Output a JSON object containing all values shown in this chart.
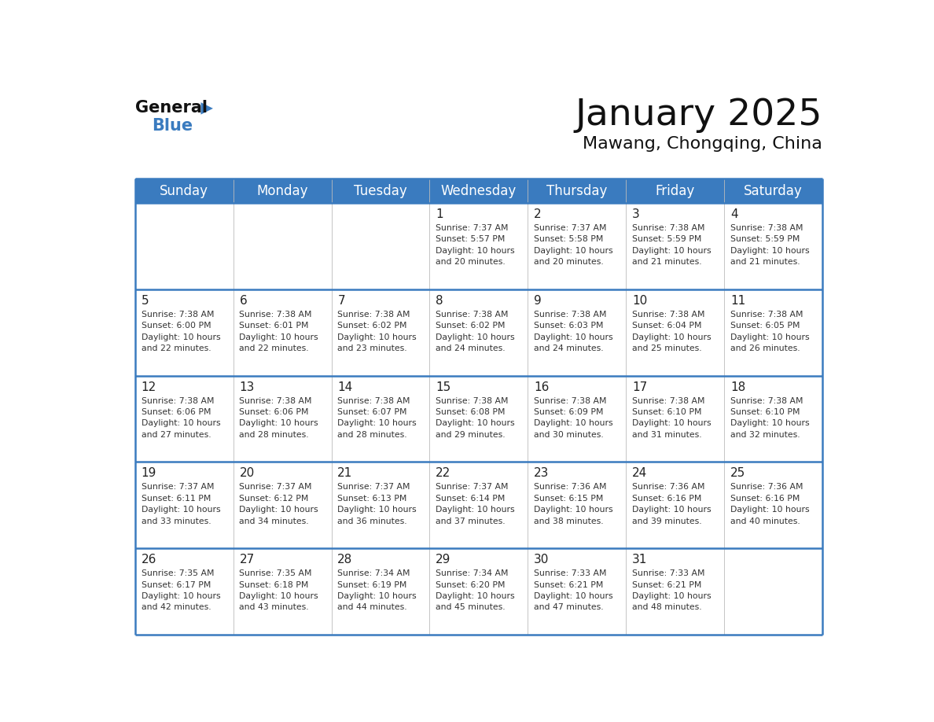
{
  "title": "January 2025",
  "subtitle": "Mawang, Chongqing, China",
  "header_color": "#3a7bbf",
  "header_text_color": "#ffffff",
  "cell_bg_color": "#ffffff",
  "day_number_color": "#222222",
  "detail_text_color": "#333333",
  "line_color": "#3a7bbf",
  "grid_line_color": "#bbbbbb",
  "days_of_week": [
    "Sunday",
    "Monday",
    "Tuesday",
    "Wednesday",
    "Thursday",
    "Friday",
    "Saturday"
  ],
  "weeks": [
    [
      {
        "day": null,
        "info": null
      },
      {
        "day": null,
        "info": null
      },
      {
        "day": null,
        "info": null
      },
      {
        "day": 1,
        "info": "Sunrise: 7:37 AM\nSunset: 5:57 PM\nDaylight: 10 hours\nand 20 minutes."
      },
      {
        "day": 2,
        "info": "Sunrise: 7:37 AM\nSunset: 5:58 PM\nDaylight: 10 hours\nand 20 minutes."
      },
      {
        "day": 3,
        "info": "Sunrise: 7:38 AM\nSunset: 5:59 PM\nDaylight: 10 hours\nand 21 minutes."
      },
      {
        "day": 4,
        "info": "Sunrise: 7:38 AM\nSunset: 5:59 PM\nDaylight: 10 hours\nand 21 minutes."
      }
    ],
    [
      {
        "day": 5,
        "info": "Sunrise: 7:38 AM\nSunset: 6:00 PM\nDaylight: 10 hours\nand 22 minutes."
      },
      {
        "day": 6,
        "info": "Sunrise: 7:38 AM\nSunset: 6:01 PM\nDaylight: 10 hours\nand 22 minutes."
      },
      {
        "day": 7,
        "info": "Sunrise: 7:38 AM\nSunset: 6:02 PM\nDaylight: 10 hours\nand 23 minutes."
      },
      {
        "day": 8,
        "info": "Sunrise: 7:38 AM\nSunset: 6:02 PM\nDaylight: 10 hours\nand 24 minutes."
      },
      {
        "day": 9,
        "info": "Sunrise: 7:38 AM\nSunset: 6:03 PM\nDaylight: 10 hours\nand 24 minutes."
      },
      {
        "day": 10,
        "info": "Sunrise: 7:38 AM\nSunset: 6:04 PM\nDaylight: 10 hours\nand 25 minutes."
      },
      {
        "day": 11,
        "info": "Sunrise: 7:38 AM\nSunset: 6:05 PM\nDaylight: 10 hours\nand 26 minutes."
      }
    ],
    [
      {
        "day": 12,
        "info": "Sunrise: 7:38 AM\nSunset: 6:06 PM\nDaylight: 10 hours\nand 27 minutes."
      },
      {
        "day": 13,
        "info": "Sunrise: 7:38 AM\nSunset: 6:06 PM\nDaylight: 10 hours\nand 28 minutes."
      },
      {
        "day": 14,
        "info": "Sunrise: 7:38 AM\nSunset: 6:07 PM\nDaylight: 10 hours\nand 28 minutes."
      },
      {
        "day": 15,
        "info": "Sunrise: 7:38 AM\nSunset: 6:08 PM\nDaylight: 10 hours\nand 29 minutes."
      },
      {
        "day": 16,
        "info": "Sunrise: 7:38 AM\nSunset: 6:09 PM\nDaylight: 10 hours\nand 30 minutes."
      },
      {
        "day": 17,
        "info": "Sunrise: 7:38 AM\nSunset: 6:10 PM\nDaylight: 10 hours\nand 31 minutes."
      },
      {
        "day": 18,
        "info": "Sunrise: 7:38 AM\nSunset: 6:10 PM\nDaylight: 10 hours\nand 32 minutes."
      }
    ],
    [
      {
        "day": 19,
        "info": "Sunrise: 7:37 AM\nSunset: 6:11 PM\nDaylight: 10 hours\nand 33 minutes."
      },
      {
        "day": 20,
        "info": "Sunrise: 7:37 AM\nSunset: 6:12 PM\nDaylight: 10 hours\nand 34 minutes."
      },
      {
        "day": 21,
        "info": "Sunrise: 7:37 AM\nSunset: 6:13 PM\nDaylight: 10 hours\nand 36 minutes."
      },
      {
        "day": 22,
        "info": "Sunrise: 7:37 AM\nSunset: 6:14 PM\nDaylight: 10 hours\nand 37 minutes."
      },
      {
        "day": 23,
        "info": "Sunrise: 7:36 AM\nSunset: 6:15 PM\nDaylight: 10 hours\nand 38 minutes."
      },
      {
        "day": 24,
        "info": "Sunrise: 7:36 AM\nSunset: 6:16 PM\nDaylight: 10 hours\nand 39 minutes."
      },
      {
        "day": 25,
        "info": "Sunrise: 7:36 AM\nSunset: 6:16 PM\nDaylight: 10 hours\nand 40 minutes."
      }
    ],
    [
      {
        "day": 26,
        "info": "Sunrise: 7:35 AM\nSunset: 6:17 PM\nDaylight: 10 hours\nand 42 minutes."
      },
      {
        "day": 27,
        "info": "Sunrise: 7:35 AM\nSunset: 6:18 PM\nDaylight: 10 hours\nand 43 minutes."
      },
      {
        "day": 28,
        "info": "Sunrise: 7:34 AM\nSunset: 6:19 PM\nDaylight: 10 hours\nand 44 minutes."
      },
      {
        "day": 29,
        "info": "Sunrise: 7:34 AM\nSunset: 6:20 PM\nDaylight: 10 hours\nand 45 minutes."
      },
      {
        "day": 30,
        "info": "Sunrise: 7:33 AM\nSunset: 6:21 PM\nDaylight: 10 hours\nand 47 minutes."
      },
      {
        "day": 31,
        "info": "Sunrise: 7:33 AM\nSunset: 6:21 PM\nDaylight: 10 hours\nand 48 minutes."
      },
      {
        "day": null,
        "info": null
      }
    ]
  ],
  "logo_general_color": "#111111",
  "logo_blue_color": "#3a7bbf",
  "logo_triangle_color": "#3a7bbf"
}
